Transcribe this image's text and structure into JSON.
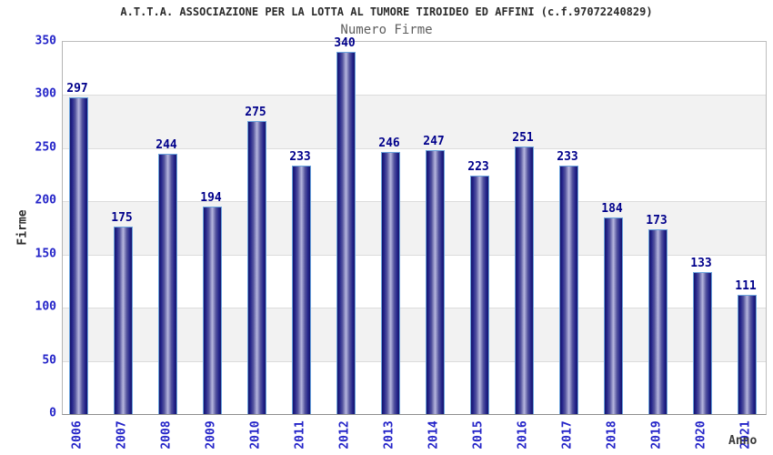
{
  "title": "A.T.T.A. ASSOCIAZIONE PER LA LOTTA AL TUMORE TIROIDEO ED AFFINI (c.f.97072240829)",
  "subtitle": "Numero Firme",
  "chart_data": {
    "type": "bar",
    "title": "Numero Firme",
    "categories": [
      "2006",
      "2007",
      "2008",
      "2009",
      "2010",
      "2011",
      "2012",
      "2013",
      "2014",
      "2015",
      "2016",
      "2017",
      "2018",
      "2019",
      "2020",
      "2021"
    ],
    "values": [
      297,
      175,
      244,
      194,
      275,
      233,
      340,
      246,
      247,
      223,
      251,
      233,
      184,
      173,
      133,
      111
    ],
    "xlabel": "Anno",
    "ylabel": "Firme",
    "ylim": [
      0,
      350
    ],
    "ytick_step": 50,
    "grid": "horizontal-on",
    "legend_position": "none",
    "background_bands": "alternating white / light gray every 50 units"
  },
  "colors": {
    "bar_edge": "#6ba3dd",
    "bar_gradient_dark": "#14146a",
    "bar_gradient_light": "#b7b7de",
    "axis_tick_label": "#2323c8",
    "value_label": "#00008b",
    "band_gray": "#f2f2f2",
    "gridline": "#dcdcdc",
    "plot_border": "#b3b3b3",
    "title_color": "#2b2b2b",
    "subtitle_color": "#5e5e5e"
  }
}
